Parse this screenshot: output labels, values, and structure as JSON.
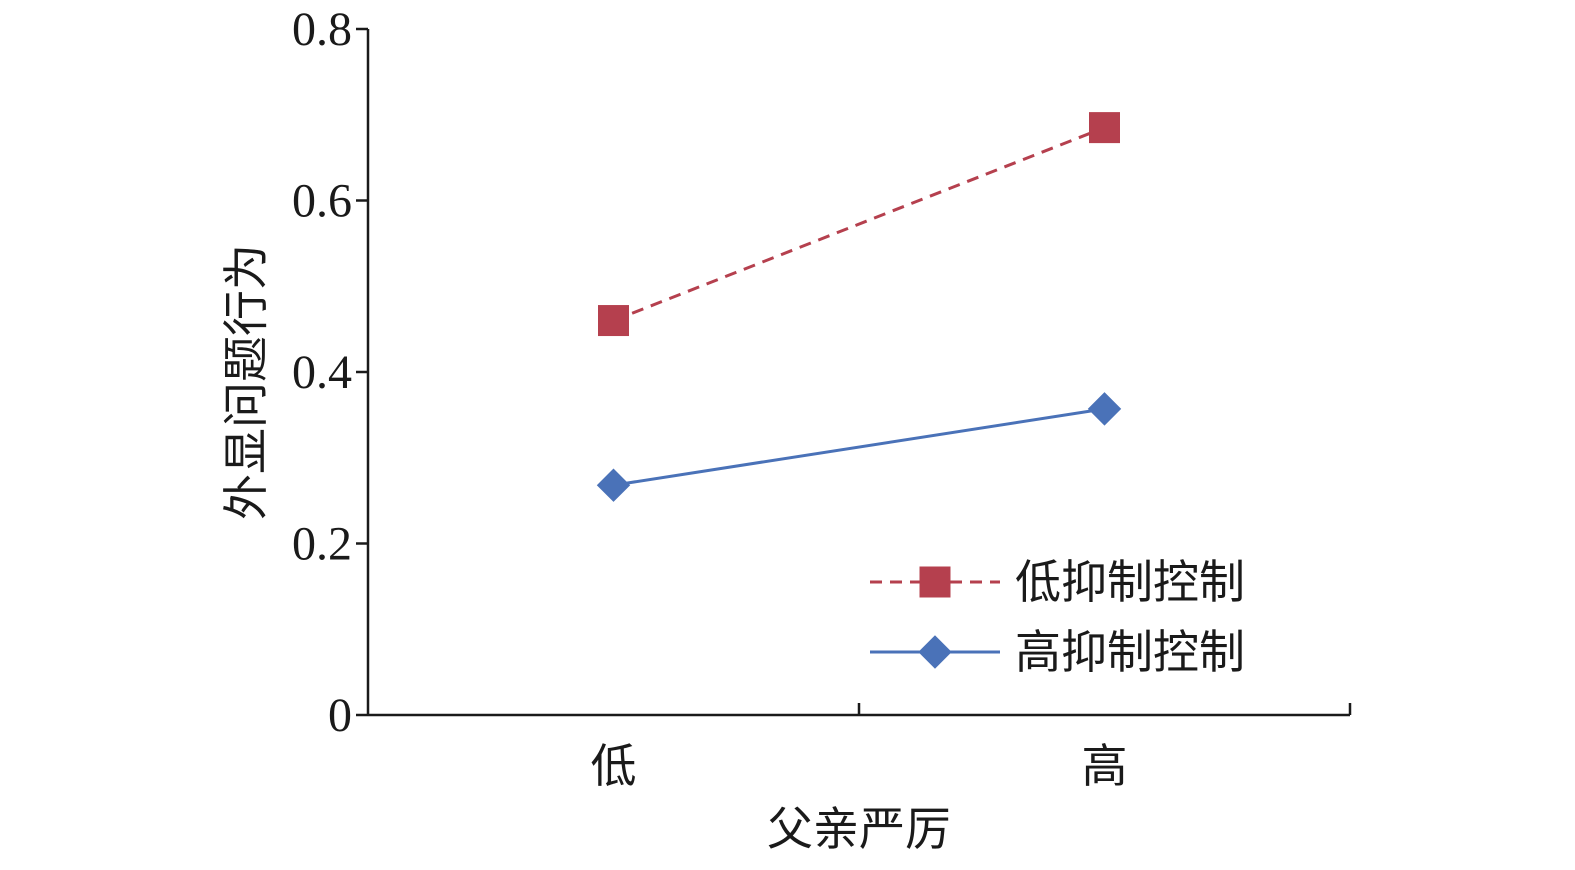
{
  "chart_data": {
    "type": "line",
    "categories": [
      "低",
      "高"
    ],
    "xlabel": "父亲严厉",
    "ylabel": "外显问题行为",
    "ylim": [
      0,
      0.8
    ],
    "yticks": [
      "0",
      "0.2",
      "0.4",
      "0.6",
      "0.8"
    ],
    "grid": false,
    "legend_position": "bottom-right",
    "series": [
      {
        "name": "低抑制控制",
        "values": [
          0.46,
          0.685
        ],
        "color": "#b5404e",
        "line_style": "dashed",
        "marker": "square"
      },
      {
        "name": "高抑制控制",
        "values": [
          0.268,
          0.357
        ],
        "color": "#4a72b8",
        "line_style": "solid",
        "marker": "diamond"
      }
    ]
  }
}
